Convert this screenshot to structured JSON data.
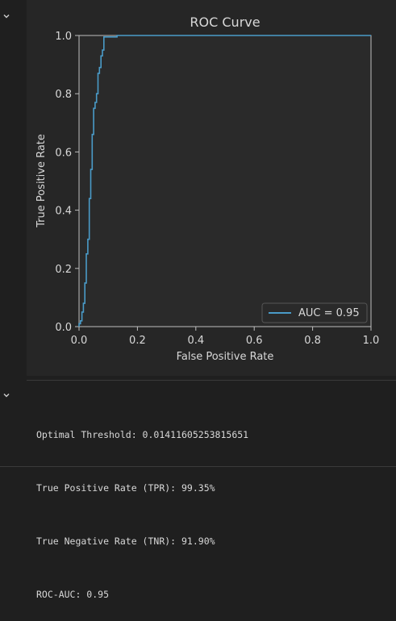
{
  "chart_data": {
    "type": "line",
    "title": "ROC Curve",
    "xlabel": "False Positive Rate",
    "ylabel": "True Positive Rate",
    "xlim": [
      0.0,
      1.0
    ],
    "ylim": [
      0.0,
      1.0
    ],
    "xticks": [
      "0.0",
      "0.2",
      "0.4",
      "0.6",
      "0.8",
      "1.0"
    ],
    "yticks": [
      "0.0",
      "0.2",
      "0.4",
      "0.6",
      "0.8",
      "1.0"
    ],
    "grid": false,
    "legend_position": "lower-right",
    "series": [
      {
        "name": "AUC = 0.95",
        "color": "#4a9bc8",
        "x": [
          0.0,
          0.0,
          0.005,
          0.005,
          0.01,
          0.01,
          0.015,
          0.015,
          0.02,
          0.02,
          0.025,
          0.025,
          0.03,
          0.03,
          0.035,
          0.035,
          0.04,
          0.04,
          0.045,
          0.045,
          0.05,
          0.05,
          0.055,
          0.055,
          0.06,
          0.06,
          0.065,
          0.065,
          0.07,
          0.07,
          0.075,
          0.075,
          0.08,
          0.08,
          0.085,
          0.085,
          0.13,
          0.13,
          1.0
        ],
        "y": [
          0.0,
          0.01,
          0.01,
          0.02,
          0.02,
          0.05,
          0.05,
          0.08,
          0.08,
          0.15,
          0.15,
          0.25,
          0.25,
          0.3,
          0.3,
          0.44,
          0.44,
          0.54,
          0.54,
          0.66,
          0.66,
          0.75,
          0.75,
          0.77,
          0.77,
          0.8,
          0.8,
          0.87,
          0.87,
          0.89,
          0.89,
          0.93,
          0.93,
          0.95,
          0.95,
          0.995,
          0.995,
          1.0,
          1.0
        ]
      }
    ]
  },
  "output": {
    "lines": [
      "Optimal Threshold: 0.01411605253815651",
      "True Positive Rate (TPR): 99.35%",
      "True Negative Rate (TNR): 91.90%",
      "ROC-AUC: 0.95"
    ]
  },
  "colors": {
    "background": "#1f1f1f",
    "plot_area": "#2a2a2a",
    "axis": "#bfbfbf",
    "text": "#d8d8d8"
  },
  "icons": {
    "collapse": "chevron-down-icon"
  }
}
